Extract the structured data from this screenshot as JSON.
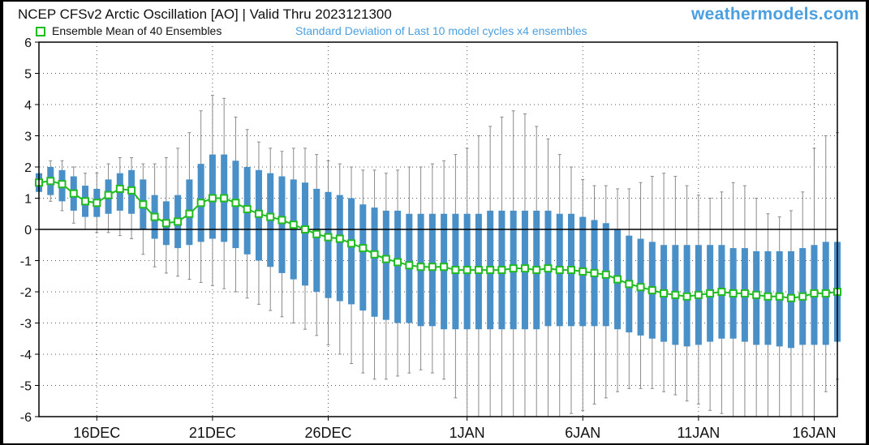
{
  "header": {
    "title": "NCEP CFSv2 Arctic Oscillation [AO] | Valid Thru 2023121300",
    "brand": "weathermodels.com",
    "legend_mean": "Ensemble Mean of 40 Ensembles",
    "legend_std": "Standard Deviation of Last 10 model cycles x4 ensembles"
  },
  "colors": {
    "mean_marker": "#22bb22",
    "std_bar": "#4a90c8",
    "whisker": "#8a8a8a",
    "brand": "#4a9fe0",
    "legend_std_text": "#4a9fe0",
    "zero_line": "#000000"
  },
  "chart_data": {
    "type": "line",
    "title": "NCEP CFSv2 Arctic Oscillation [AO] | Valid Thru 2023121300",
    "xlabel": "",
    "ylabel": "",
    "ylim": [
      -6,
      6
    ],
    "yticks": [
      6,
      5,
      4,
      3,
      2,
      1,
      0,
      -1,
      -2,
      -3,
      -4,
      -5,
      -6
    ],
    "xticks": [
      {
        "label": "16DEC",
        "date": "2023-12-16"
      },
      {
        "label": "21DEC",
        "date": "2023-12-21"
      },
      {
        "label": "26DEC",
        "date": "2023-12-26"
      },
      {
        "label": "1JAN",
        "date": "2024-01-01"
      },
      {
        "label": "6JAN",
        "date": "2024-01-06"
      },
      {
        "label": "11JAN",
        "date": "2024-01-11"
      },
      {
        "label": "16JAN",
        "date": "2024-01-16"
      }
    ],
    "xlim": [
      "2023-12-13T12:00",
      "2024-01-17T00:00"
    ],
    "grid": true,
    "legend_position": "top-left",
    "series": [
      {
        "name": "Ensemble Mean of 40 Ensembles",
        "points": [
          [
            "2023-12-13T12:00",
            1.5
          ],
          [
            "2023-12-14T00:00",
            1.55
          ],
          [
            "2023-12-14T12:00",
            1.45
          ],
          [
            "2023-12-15T00:00",
            1.15
          ],
          [
            "2023-12-15T12:00",
            0.9
          ],
          [
            "2023-12-16T00:00",
            0.85
          ],
          [
            "2023-12-16T12:00",
            1.1
          ],
          [
            "2023-12-17T00:00",
            1.3
          ],
          [
            "2023-12-17T12:00",
            1.25
          ],
          [
            "2023-12-18T00:00",
            0.8
          ],
          [
            "2023-12-18T12:00",
            0.4
          ],
          [
            "2023-12-19T00:00",
            0.2
          ],
          [
            "2023-12-19T12:00",
            0.25
          ],
          [
            "2023-12-20T00:00",
            0.5
          ],
          [
            "2023-12-20T12:00",
            0.85
          ],
          [
            "2023-12-21T00:00",
            1.0
          ],
          [
            "2023-12-21T12:00",
            1.0
          ],
          [
            "2023-12-22T00:00",
            0.85
          ],
          [
            "2023-12-22T12:00",
            0.65
          ],
          [
            "2023-12-23T00:00",
            0.5
          ],
          [
            "2023-12-23T12:00",
            0.4
          ],
          [
            "2023-12-24T00:00",
            0.3
          ],
          [
            "2023-12-24T12:00",
            0.15
          ],
          [
            "2023-12-25T00:00",
            0.0
          ],
          [
            "2023-12-25T12:00",
            -0.15
          ],
          [
            "2023-12-26T00:00",
            -0.25
          ],
          [
            "2023-12-26T12:00",
            -0.3
          ],
          [
            "2023-12-27T00:00",
            -0.45
          ],
          [
            "2023-12-27T12:00",
            -0.6
          ],
          [
            "2023-12-28T00:00",
            -0.8
          ],
          [
            "2023-12-28T12:00",
            -0.95
          ],
          [
            "2023-12-29T00:00",
            -1.05
          ],
          [
            "2023-12-29T12:00",
            -1.15
          ],
          [
            "2023-12-30T00:00",
            -1.2
          ],
          [
            "2023-12-30T12:00",
            -1.2
          ],
          [
            "2023-12-31T00:00",
            -1.2
          ],
          [
            "2023-12-31T12:00",
            -1.3
          ],
          [
            "2024-01-01T00:00",
            -1.3
          ],
          [
            "2024-01-01T12:00",
            -1.3
          ],
          [
            "2024-01-02T00:00",
            -1.3
          ],
          [
            "2024-01-02T12:00",
            -1.3
          ],
          [
            "2024-01-03T00:00",
            -1.25
          ],
          [
            "2024-01-03T12:00",
            -1.25
          ],
          [
            "2024-01-04T00:00",
            -1.3
          ],
          [
            "2024-01-04T12:00",
            -1.25
          ],
          [
            "2024-01-05T00:00",
            -1.3
          ],
          [
            "2024-01-05T12:00",
            -1.3
          ],
          [
            "2024-01-06T00:00",
            -1.35
          ],
          [
            "2024-01-06T12:00",
            -1.4
          ],
          [
            "2024-01-07T00:00",
            -1.45
          ],
          [
            "2024-01-07T12:00",
            -1.6
          ],
          [
            "2024-01-08T00:00",
            -1.75
          ],
          [
            "2024-01-08T12:00",
            -1.85
          ],
          [
            "2024-01-09T00:00",
            -1.95
          ],
          [
            "2024-01-09T12:00",
            -2.05
          ],
          [
            "2024-01-10T00:00",
            -2.1
          ],
          [
            "2024-01-10T12:00",
            -2.15
          ],
          [
            "2024-01-11T00:00",
            -2.1
          ],
          [
            "2024-01-11T12:00",
            -2.05
          ],
          [
            "2024-01-12T00:00",
            -2.0
          ],
          [
            "2024-01-12T12:00",
            -2.05
          ],
          [
            "2024-01-13T00:00",
            -2.05
          ],
          [
            "2024-01-13T12:00",
            -2.1
          ],
          [
            "2024-01-14T00:00",
            -2.15
          ],
          [
            "2024-01-14T12:00",
            -2.15
          ],
          [
            "2024-01-15T00:00",
            -2.2
          ],
          [
            "2024-01-15T12:00",
            -2.15
          ],
          [
            "2024-01-16T00:00",
            -2.05
          ],
          [
            "2024-01-16T12:00",
            -2.05
          ],
          [
            "2024-01-17T00:00",
            -2.0
          ]
        ]
      },
      {
        "name": "Standard Deviation of Last 10 model cycles x4 ensembles",
        "type": "range-bar",
        "points": [
          [
            "2023-12-13T12:00",
            1.2,
            1.8
          ],
          [
            "2023-12-14T00:00",
            1.1,
            2.0
          ],
          [
            "2023-12-14T12:00",
            0.9,
            1.9
          ],
          [
            "2023-12-15T00:00",
            0.6,
            1.7
          ],
          [
            "2023-12-15T12:00",
            0.4,
            1.4
          ],
          [
            "2023-12-16T00:00",
            0.4,
            1.3
          ],
          [
            "2023-12-16T12:00",
            0.5,
            1.6
          ],
          [
            "2023-12-17T00:00",
            0.6,
            1.8
          ],
          [
            "2023-12-17T12:00",
            0.5,
            1.9
          ],
          [
            "2023-12-18T00:00",
            0.0,
            1.6
          ],
          [
            "2023-12-18T12:00",
            -0.3,
            1.1
          ],
          [
            "2023-12-19T00:00",
            -0.5,
            0.9
          ],
          [
            "2023-12-19T12:00",
            -0.6,
            1.1
          ],
          [
            "2023-12-20T00:00",
            -0.5,
            1.6
          ],
          [
            "2023-12-20T12:00",
            -0.4,
            2.1
          ],
          [
            "2023-12-21T00:00",
            -0.3,
            2.4
          ],
          [
            "2023-12-21T12:00",
            -0.4,
            2.4
          ],
          [
            "2023-12-22T00:00",
            -0.6,
            2.2
          ],
          [
            "2023-12-22T12:00",
            -0.8,
            2.0
          ],
          [
            "2023-12-23T00:00",
            -1.0,
            1.9
          ],
          [
            "2023-12-23T12:00",
            -1.2,
            1.8
          ],
          [
            "2023-12-24T00:00",
            -1.4,
            1.7
          ],
          [
            "2023-12-24T12:00",
            -1.6,
            1.6
          ],
          [
            "2023-12-25T00:00",
            -1.8,
            1.5
          ],
          [
            "2023-12-25T12:00",
            -2.0,
            1.3
          ],
          [
            "2023-12-26T00:00",
            -2.2,
            1.2
          ],
          [
            "2023-12-26T12:00",
            -2.3,
            1.1
          ],
          [
            "2023-12-27T00:00",
            -2.4,
            1.0
          ],
          [
            "2023-12-27T12:00",
            -2.6,
            0.8
          ],
          [
            "2023-12-28T00:00",
            -2.8,
            0.7
          ],
          [
            "2023-12-28T12:00",
            -2.9,
            0.6
          ],
          [
            "2023-12-29T00:00",
            -3.0,
            0.6
          ],
          [
            "2023-12-29T12:00",
            -3.0,
            0.5
          ],
          [
            "2023-12-30T00:00",
            -3.1,
            0.5
          ],
          [
            "2023-12-30T12:00",
            -3.1,
            0.5
          ],
          [
            "2023-12-31T00:00",
            -3.2,
            0.5
          ],
          [
            "2023-12-31T12:00",
            -3.2,
            0.5
          ],
          [
            "2024-01-01T00:00",
            -3.2,
            0.5
          ],
          [
            "2024-01-01T12:00",
            -3.2,
            0.5
          ],
          [
            "2024-01-02T00:00",
            -3.2,
            0.6
          ],
          [
            "2024-01-02T12:00",
            -3.2,
            0.6
          ],
          [
            "2024-01-03T00:00",
            -3.2,
            0.6
          ],
          [
            "2024-01-03T12:00",
            -3.2,
            0.6
          ],
          [
            "2024-01-04T00:00",
            -3.2,
            0.6
          ],
          [
            "2024-01-04T12:00",
            -3.1,
            0.6
          ],
          [
            "2024-01-05T00:00",
            -3.1,
            0.5
          ],
          [
            "2024-01-05T12:00",
            -3.1,
            0.5
          ],
          [
            "2024-01-06T00:00",
            -3.1,
            0.4
          ],
          [
            "2024-01-06T12:00",
            -3.1,
            0.3
          ],
          [
            "2024-01-07T00:00",
            -3.1,
            0.2
          ],
          [
            "2024-01-07T12:00",
            -3.2,
            0.0
          ],
          [
            "2024-01-08T00:00",
            -3.3,
            -0.2
          ],
          [
            "2024-01-08T12:00",
            -3.4,
            -0.3
          ],
          [
            "2024-01-09T00:00",
            -3.5,
            -0.4
          ],
          [
            "2024-01-09T12:00",
            -3.6,
            -0.5
          ],
          [
            "2024-01-10T00:00",
            -3.7,
            -0.5
          ],
          [
            "2024-01-10T12:00",
            -3.75,
            -0.5
          ],
          [
            "2024-01-11T00:00",
            -3.7,
            -0.5
          ],
          [
            "2024-01-11T12:00",
            -3.6,
            -0.5
          ],
          [
            "2024-01-12T00:00",
            -3.5,
            -0.5
          ],
          [
            "2024-01-12T12:00",
            -3.5,
            -0.6
          ],
          [
            "2024-01-13T00:00",
            -3.6,
            -0.6
          ],
          [
            "2024-01-13T12:00",
            -3.7,
            -0.7
          ],
          [
            "2024-01-14T00:00",
            -3.7,
            -0.7
          ],
          [
            "2024-01-14T12:00",
            -3.75,
            -0.7
          ],
          [
            "2024-01-15T00:00",
            -3.8,
            -0.7
          ],
          [
            "2024-01-15T12:00",
            -3.7,
            -0.6
          ],
          [
            "2024-01-16T00:00",
            -3.7,
            -0.5
          ],
          [
            "2024-01-16T12:00",
            -3.7,
            -0.4
          ],
          [
            "2024-01-17T00:00",
            -3.6,
            -0.4
          ]
        ]
      }
    ],
    "whiskers": [
      [
        "2023-12-13T12:00",
        1.0,
        2.0
      ],
      [
        "2023-12-14T00:00",
        0.9,
        2.2
      ],
      [
        "2023-12-14T12:00",
        0.6,
        2.2
      ],
      [
        "2023-12-15T00:00",
        0.2,
        2.0
      ],
      [
        "2023-12-15T12:00",
        0.0,
        1.8
      ],
      [
        "2023-12-16T00:00",
        -0.1,
        1.8
      ],
      [
        "2023-12-16T12:00",
        -0.1,
        2.1
      ],
      [
        "2023-12-17T00:00",
        -0.2,
        2.3
      ],
      [
        "2023-12-17T12:00",
        -0.3,
        2.3
      ],
      [
        "2023-12-18T00:00",
        -0.8,
        2.1
      ],
      [
        "2023-12-18T12:00",
        -1.2,
        2.1
      ],
      [
        "2023-12-19T00:00",
        -1.4,
        2.3
      ],
      [
        "2023-12-19T12:00",
        -1.5,
        2.6
      ],
      [
        "2023-12-20T00:00",
        -1.6,
        3.1
      ],
      [
        "2023-12-20T12:00",
        -1.7,
        3.8
      ],
      [
        "2023-12-21T00:00",
        -1.8,
        4.3
      ],
      [
        "2023-12-21T12:00",
        -1.9,
        4.2
      ],
      [
        "2023-12-22T00:00",
        -2.0,
        3.6
      ],
      [
        "2023-12-22T12:00",
        -2.2,
        3.2
      ],
      [
        "2023-12-23T00:00",
        -2.4,
        2.8
      ],
      [
        "2023-12-23T12:00",
        -2.6,
        2.6
      ],
      [
        "2023-12-24T00:00",
        -2.8,
        2.5
      ],
      [
        "2023-12-24T12:00",
        -3.0,
        2.6
      ],
      [
        "2023-12-25T00:00",
        -3.2,
        2.6
      ],
      [
        "2023-12-25T12:00",
        -3.4,
        2.4
      ],
      [
        "2023-12-26T00:00",
        -3.7,
        2.2
      ],
      [
        "2023-12-26T12:00",
        -4.0,
        2.1
      ],
      [
        "2023-12-27T00:00",
        -4.3,
        2.0
      ],
      [
        "2023-12-27T12:00",
        -4.6,
        1.9
      ],
      [
        "2023-12-28T00:00",
        -4.8,
        1.9
      ],
      [
        "2023-12-28T12:00",
        -4.8,
        1.8
      ],
      [
        "2023-12-29T00:00",
        -4.7,
        1.9
      ],
      [
        "2023-12-29T12:00",
        -4.6,
        2.0
      ],
      [
        "2023-12-30T00:00",
        -4.5,
        2.0
      ],
      [
        "2023-12-30T12:00",
        -4.6,
        2.1
      ],
      [
        "2023-12-31T00:00",
        -4.8,
        2.2
      ],
      [
        "2023-12-31T12:00",
        -5.4,
        2.4
      ],
      [
        "2024-01-01T00:00",
        -6.0,
        2.6
      ],
      [
        "2024-01-01T12:00",
        -6.0,
        3.0
      ],
      [
        "2024-01-02T00:00",
        -6.0,
        3.3
      ],
      [
        "2024-01-02T12:00",
        -6.0,
        3.6
      ],
      [
        "2024-01-03T00:00",
        -6.0,
        3.8
      ],
      [
        "2024-01-03T12:00",
        -6.0,
        3.7
      ],
      [
        "2024-01-04T00:00",
        -6.0,
        3.3
      ],
      [
        "2024-01-04T12:00",
        -6.0,
        2.9
      ],
      [
        "2024-01-05T00:00",
        -6.0,
        2.4
      ],
      [
        "2024-01-05T12:00",
        -5.9,
        2.0
      ],
      [
        "2024-01-06T00:00",
        -5.8,
        1.6
      ],
      [
        "2024-01-06T12:00",
        -5.6,
        1.4
      ],
      [
        "2024-01-07T00:00",
        -5.4,
        1.4
      ],
      [
        "2024-01-07T12:00",
        -5.2,
        1.3
      ],
      [
        "2024-01-08T00:00",
        -5.1,
        1.3
      ],
      [
        "2024-01-08T12:00",
        -5.1,
        1.5
      ],
      [
        "2024-01-09T00:00",
        -5.1,
        1.7
      ],
      [
        "2024-01-09T12:00",
        -5.2,
        1.8
      ],
      [
        "2024-01-10T00:00",
        -5.3,
        1.7
      ],
      [
        "2024-01-10T12:00",
        -5.5,
        1.4
      ],
      [
        "2024-01-11T00:00",
        -5.6,
        1.1
      ],
      [
        "2024-01-11T12:00",
        -5.8,
        1.0
      ],
      [
        "2024-01-12T00:00",
        -5.9,
        1.2
      ],
      [
        "2024-01-12T12:00",
        -6.0,
        1.5
      ],
      [
        "2024-01-13T00:00",
        -6.0,
        1.4
      ],
      [
        "2024-01-13T12:00",
        -6.0,
        1.0
      ],
      [
        "2024-01-14T00:00",
        -6.0,
        0.5
      ],
      [
        "2024-01-14T12:00",
        -6.0,
        0.4
      ],
      [
        "2024-01-15T00:00",
        -6.0,
        0.6
      ],
      [
        "2024-01-15T12:00",
        -6.0,
        1.2
      ],
      [
        "2024-01-16T00:00",
        -6.0,
        2.6
      ],
      [
        "2024-01-16T12:00",
        -5.2,
        3.0
      ],
      [
        "2024-01-17T00:00",
        -4.8,
        3.1
      ]
    ]
  }
}
